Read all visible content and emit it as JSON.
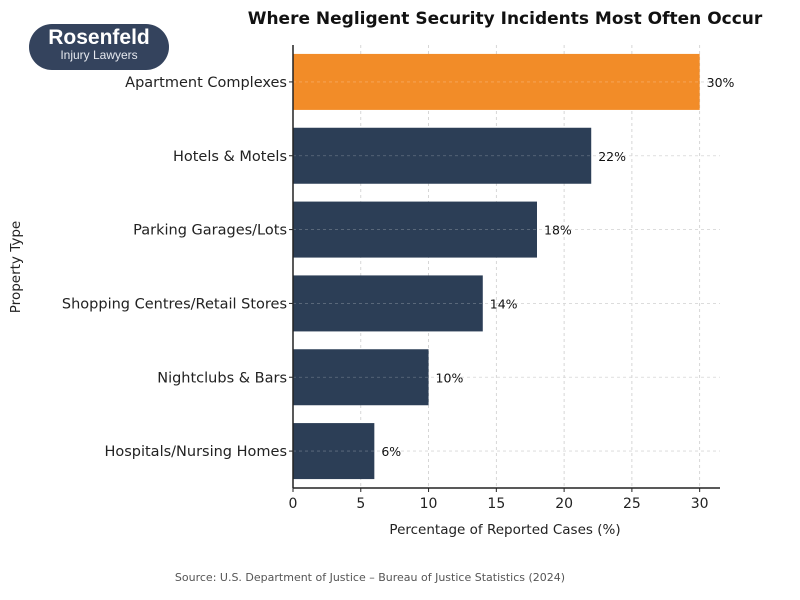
{
  "logo": {
    "name": "Rosenfeld",
    "tagline": "Injury Lawyers"
  },
  "source": "Source: U.S. Department of Justice – Bureau of Justice Statistics (2024)",
  "chart_data": {
    "type": "bar",
    "orientation": "horizontal",
    "title": "Where Negligent Security Incidents Most Often Occur",
    "xlabel": "Percentage of Reported Cases (%)",
    "ylabel": "Property Type",
    "categories": [
      "Apartment Complexes",
      "Hotels & Motels",
      "Parking Garages/Lots",
      "Shopping Centres/Retail Stores",
      "Nightclubs & Bars",
      "Hospitals/Nursing Homes"
    ],
    "values": [
      30,
      22,
      18,
      14,
      10,
      6
    ],
    "data_labels": [
      "30%",
      "22%",
      "18%",
      "14%",
      "10%",
      "6%"
    ],
    "xticks": [
      0,
      5,
      10,
      15,
      20,
      25,
      30
    ],
    "xlim": [
      0,
      31.5
    ],
    "grid": true,
    "colors": {
      "highlight": "#f28c28",
      "default": "#2c3e56"
    }
  }
}
